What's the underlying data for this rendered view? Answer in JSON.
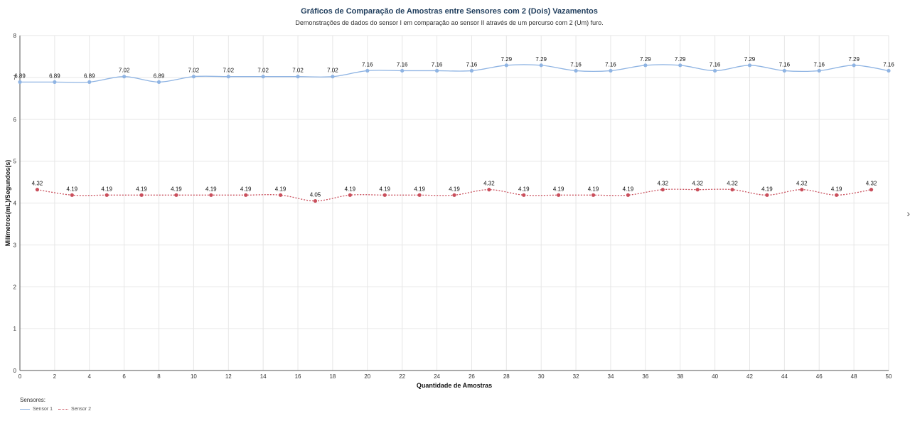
{
  "chart_data": {
    "type": "line",
    "title": "Gráficos de Comparação de Amostras entre Sensores com 2 (Dois) Vazamentos",
    "subtitle": "Demonstrações de dados do sensor I em comparação ao sensor II através de um percurso com 2 (Um) furo.",
    "xlabel": "Quantidade de Amostras",
    "ylabel": "Milímetros(mL)/Segundos(s)",
    "xlim": [
      0,
      50
    ],
    "ylim": [
      0,
      8
    ],
    "x_ticks": [
      0,
      2,
      4,
      6,
      8,
      10,
      12,
      14,
      16,
      18,
      20,
      22,
      24,
      26,
      28,
      30,
      32,
      34,
      36,
      38,
      40,
      42,
      44,
      46,
      48,
      50
    ],
    "y_ticks": [
      0,
      1,
      2,
      3,
      4,
      5,
      6,
      7,
      8
    ],
    "grid": true,
    "legend_title": "Sensores:",
    "series": [
      {
        "name": "Sensor 1",
        "color": "#8fb4e3",
        "style": "solid",
        "x": [
          0,
          2,
          4,
          6,
          8,
          10,
          12,
          14,
          16,
          18,
          20,
          22,
          24,
          26,
          28,
          30,
          32,
          34,
          36,
          38,
          40,
          42,
          44,
          46,
          48,
          50
        ],
        "values": [
          6.89,
          6.89,
          6.89,
          7.02,
          6.89,
          7.02,
          7.02,
          7.02,
          7.02,
          7.02,
          7.16,
          7.16,
          7.16,
          7.16,
          7.29,
          7.29,
          7.16,
          7.16,
          7.29,
          7.29,
          7.16,
          7.29,
          7.16,
          7.16,
          7.29,
          7.16
        ]
      },
      {
        "name": "Sensor 2",
        "color": "#c94f5c",
        "style": "dotted",
        "x": [
          1,
          3,
          5,
          7,
          9,
          11,
          13,
          15,
          17,
          19,
          21,
          23,
          25,
          27,
          29,
          31,
          33,
          35,
          37,
          39,
          41,
          43,
          45,
          47,
          49
        ],
        "values": [
          4.32,
          4.19,
          4.19,
          4.19,
          4.19,
          4.19,
          4.19,
          4.19,
          4.05,
          4.19,
          4.19,
          4.19,
          4.19,
          4.32,
          4.19,
          4.19,
          4.19,
          4.19,
          4.32,
          4.32,
          4.32,
          4.19,
          4.32,
          4.19,
          4.32
        ]
      }
    ]
  },
  "nav": {
    "next_icon": "chevron-right-icon",
    "next_glyph": "›"
  }
}
